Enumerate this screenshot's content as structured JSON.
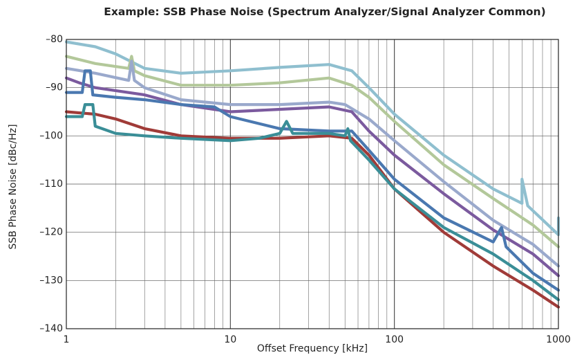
{
  "chart_data": {
    "type": "line",
    "title": "Example: SSB Phase Noise (Spectrum Analyzer/Signal Analyzer Common)",
    "xlabel": "Offset Frequency [kHz]",
    "ylabel": "SSB Phase Noise [dBc/Hz]",
    "x_scale": "log",
    "xlim": [
      1,
      1000
    ],
    "ylim": [
      -140,
      -80
    ],
    "x_ticks": [
      1,
      10,
      100,
      1000
    ],
    "x_tick_labels": [
      "1",
      "10",
      "100",
      "1000"
    ],
    "y_ticks": [
      -80,
      -90,
      -100,
      -110,
      -120,
      -130,
      -140
    ],
    "y_tick_labels": [
      "–80",
      "–90",
      "–100",
      "–110",
      "–120",
      "–130",
      "–140"
    ],
    "grid": true,
    "series": [
      {
        "color": "#8fbfcf",
        "points": [
          [
            1,
            -80.5
          ],
          [
            1.5,
            -81.5
          ],
          [
            2,
            -83
          ],
          [
            3,
            -86
          ],
          [
            5,
            -87
          ],
          [
            10,
            -86.5
          ],
          [
            20,
            -85.8
          ],
          [
            40,
            -85.2
          ],
          [
            55,
            -86.5
          ],
          [
            70,
            -90
          ],
          [
            100,
            -95.5
          ],
          [
            200,
            -104
          ],
          [
            400,
            -111
          ],
          [
            600,
            -114
          ],
          [
            600,
            -109
          ],
          [
            650,
            -114.5
          ],
          [
            1000,
            -120.5
          ],
          [
            1000,
            -117
          ]
        ]
      },
      {
        "color": "#b3c89a",
        "points": [
          [
            1,
            -83.5
          ],
          [
            1.5,
            -85
          ],
          [
            2.4,
            -86
          ],
          [
            2.5,
            -83.5
          ],
          [
            2.6,
            -86.5
          ],
          [
            3,
            -87.5
          ],
          [
            5,
            -89.5
          ],
          [
            10,
            -89.5
          ],
          [
            20,
            -89
          ],
          [
            40,
            -88
          ],
          [
            55,
            -89.5
          ],
          [
            70,
            -92
          ],
          [
            100,
            -97
          ],
          [
            200,
            -106
          ],
          [
            400,
            -113
          ],
          [
            700,
            -118.5
          ],
          [
            1000,
            -123
          ]
        ]
      },
      {
        "color": "#9aa9cc",
        "points": [
          [
            1,
            -86
          ],
          [
            1.5,
            -87
          ],
          [
            2.4,
            -88.5
          ],
          [
            2.5,
            -84.5
          ],
          [
            2.6,
            -88.5
          ],
          [
            3,
            -90
          ],
          [
            5,
            -92.5
          ],
          [
            10,
            -93.5
          ],
          [
            20,
            -93.5
          ],
          [
            40,
            -93
          ],
          [
            50,
            -93.5
          ],
          [
            70,
            -96.5
          ],
          [
            100,
            -101
          ],
          [
            200,
            -109.5
          ],
          [
            400,
            -117.5
          ],
          [
            700,
            -122.5
          ],
          [
            1000,
            -127
          ]
        ]
      },
      {
        "color": "#7b5a9e",
        "points": [
          [
            1,
            -88
          ],
          [
            1.2,
            -89
          ],
          [
            1.5,
            -90
          ],
          [
            3,
            -91.5
          ],
          [
            5,
            -93.5
          ],
          [
            10,
            -95
          ],
          [
            20,
            -94.5
          ],
          [
            40,
            -94
          ],
          [
            55,
            -95
          ],
          [
            70,
            -99
          ],
          [
            100,
            -104
          ],
          [
            200,
            -112
          ],
          [
            400,
            -119.5
          ],
          [
            700,
            -124.5
          ],
          [
            1000,
            -129
          ]
        ]
      },
      {
        "color": "#4a78b0",
        "points": [
          [
            1,
            -91
          ],
          [
            1.25,
            -91
          ],
          [
            1.3,
            -86.5
          ],
          [
            1.4,
            -86.5
          ],
          [
            1.45,
            -91.5
          ],
          [
            2,
            -92
          ],
          [
            3,
            -92.5
          ],
          [
            5,
            -93.5
          ],
          [
            8,
            -94
          ],
          [
            10,
            -96
          ],
          [
            20,
            -98.5
          ],
          [
            40,
            -99
          ],
          [
            55,
            -99
          ],
          [
            70,
            -103
          ],
          [
            100,
            -109
          ],
          [
            200,
            -117
          ],
          [
            400,
            -122
          ],
          [
            450,
            -119
          ],
          [
            480,
            -123
          ],
          [
            700,
            -128.5
          ],
          [
            1000,
            -132
          ]
        ]
      },
      {
        "color": "#a03b38",
        "points": [
          [
            1,
            -95
          ],
          [
            1.5,
            -95.5
          ],
          [
            2,
            -96.5
          ],
          [
            3,
            -98.5
          ],
          [
            5,
            -100
          ],
          [
            10,
            -100.5
          ],
          [
            20,
            -100.5
          ],
          [
            40,
            -100
          ],
          [
            55,
            -100.5
          ],
          [
            70,
            -104
          ],
          [
            100,
            -111
          ],
          [
            200,
            -120
          ],
          [
            400,
            -127
          ],
          [
            700,
            -132
          ],
          [
            1000,
            -135.5
          ]
        ]
      },
      {
        "color": "#3a8e97",
        "points": [
          [
            1,
            -96
          ],
          [
            1.25,
            -96
          ],
          [
            1.3,
            -93.5
          ],
          [
            1.45,
            -93.5
          ],
          [
            1.5,
            -98
          ],
          [
            2,
            -99.5
          ],
          [
            3,
            -100
          ],
          [
            5,
            -100.5
          ],
          [
            10,
            -101
          ],
          [
            15,
            -100.5
          ],
          [
            20,
            -99.5
          ],
          [
            22,
            -97
          ],
          [
            24,
            -99.5
          ],
          [
            40,
            -99.5
          ],
          [
            50,
            -100
          ],
          [
            52,
            -98.5
          ],
          [
            54,
            -101
          ],
          [
            70,
            -105
          ],
          [
            100,
            -111
          ],
          [
            200,
            -119
          ],
          [
            400,
            -124.5
          ],
          [
            700,
            -130
          ],
          [
            1000,
            -134
          ]
        ]
      }
    ]
  }
}
